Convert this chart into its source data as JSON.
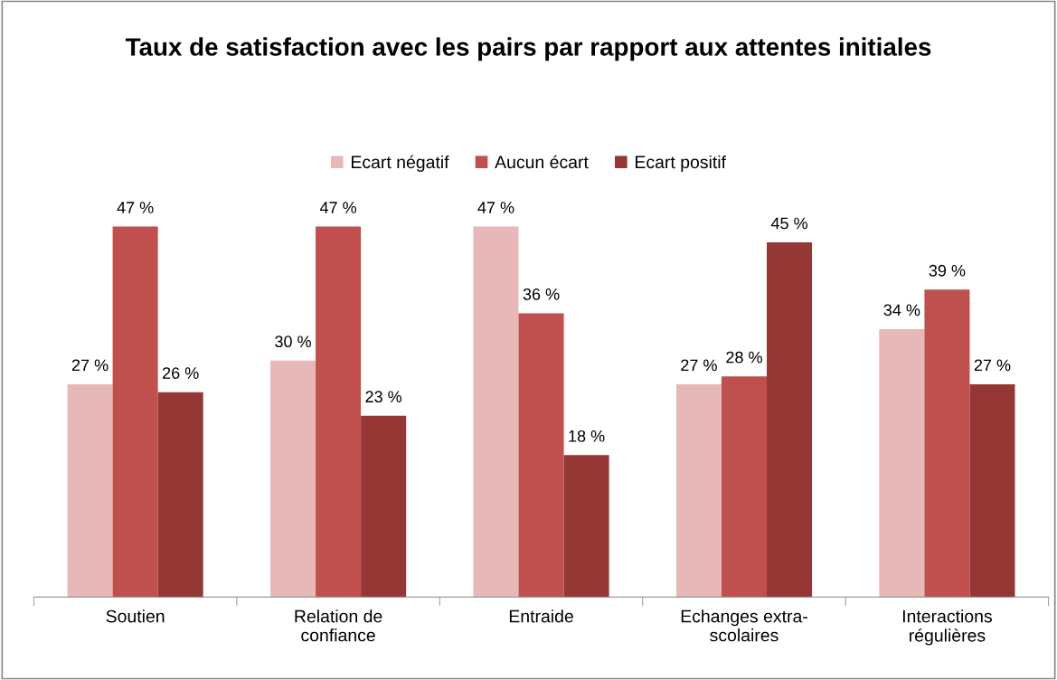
{
  "chart_data": {
    "type": "bar",
    "title": "Taux de satisfaction avec les pairs par rapport aux attentes initiales",
    "categories": [
      "Soutien",
      "Relation de\nconfiance",
      "Entraide",
      "Echanges extra-\nscolaires",
      "Interactions\nrégulières"
    ],
    "series": [
      {
        "name": "Ecart négatif",
        "color": "#e6b9b8",
        "values": [
          27,
          30,
          47,
          27,
          34
        ],
        "value_labels": [
          "27 %",
          "30 %",
          "47 %",
          "27 %",
          "34 %"
        ]
      },
      {
        "name": "Aucun écart",
        "color": "#c0504d",
        "values": [
          47,
          47,
          36,
          28,
          39
        ],
        "value_labels": [
          "47 %",
          "47 %",
          "36 %",
          "28 %",
          "39 %"
        ]
      },
      {
        "name": "Ecart positif",
        "color": "#953735",
        "values": [
          26,
          23,
          18,
          45,
          27
        ],
        "value_labels": [
          "26 %",
          "23 %",
          "18 %",
          "45 %",
          "27 %"
        ]
      }
    ],
    "legend": "top",
    "grid": false
  }
}
